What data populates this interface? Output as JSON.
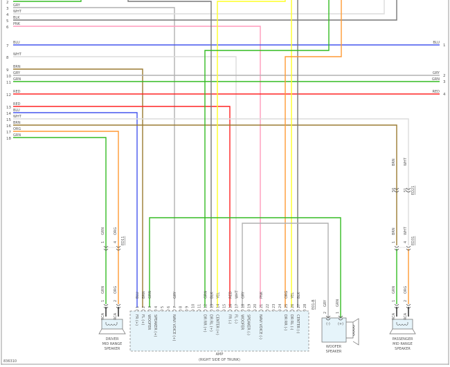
{
  "diagram_id": "836310",
  "wire_colors": {
    "GRN": "#33bb22",
    "GRY": "#b0b0b0",
    "WHT": "#dcdcdc",
    "BLK": "#777777",
    "PNK": "#ff99bb",
    "BLU": "#4455ee",
    "BRN": "#9a7a30",
    "RED": "#ff2222",
    "ORG": "#ff9933",
    "YEL": "#ffff22"
  },
  "left_harness": [
    {
      "pin": "1",
      "color": ""
    },
    {
      "pin": "2",
      "color": "GRN"
    },
    {
      "pin": "3",
      "color": "GRY"
    },
    {
      "pin": "4",
      "color": "WHT"
    },
    {
      "pin": "5",
      "color": "BLK"
    },
    {
      "pin": "6",
      "color": "PNK"
    },
    {
      "pin": "7",
      "color": "BLU"
    },
    {
      "pin": "8",
      "color": "WHT"
    },
    {
      "pin": "9",
      "color": "BRN"
    },
    {
      "pin": "10",
      "color": "GRY"
    },
    {
      "pin": "11",
      "color": "GRN"
    },
    {
      "pin": "12",
      "color": "RED"
    },
    {
      "pin": "13",
      "color": "RED"
    },
    {
      "pin": "14",
      "color": "BLU"
    },
    {
      "pin": "15",
      "color": "WHT"
    },
    {
      "pin": "16",
      "color": "BRN"
    },
    {
      "pin": "17",
      "color": "ORG"
    },
    {
      "pin": "18",
      "color": "GRN"
    }
  ],
  "right_harness": [
    {
      "pin": "1",
      "color": "BLU"
    },
    {
      "pin": "2",
      "color": "GRY"
    },
    {
      "pin": "3",
      "color": "GRN"
    },
    {
      "pin": "4",
      "color": "RED"
    }
  ],
  "amp": {
    "title": "AMP",
    "location": "(RIGHT SIDE OF TRUNK)",
    "connector": "E01-B",
    "pins": [
      {
        "pin": "1",
        "color": "BLU"
      },
      {
        "pin": "2",
        "color": "BRN"
      },
      {
        "pin": "3",
        "color": "GRN"
      },
      {
        "pin": "4",
        "color": ""
      },
      {
        "pin": "5",
        "color": ""
      },
      {
        "pin": "6",
        "color": ""
      },
      {
        "pin": "7",
        "color": "GRY"
      },
      {
        "pin": "8",
        "color": ""
      },
      {
        "pin": "9",
        "color": ""
      },
      {
        "pin": "10",
        "color": ""
      },
      {
        "pin": "11",
        "color": ""
      },
      {
        "pin": "12",
        "color": "GRN"
      },
      {
        "pin": "13",
        "color": "BLK"
      },
      {
        "pin": "14",
        "color": "YEL"
      },
      {
        "pin": "15",
        "color": ""
      },
      {
        "pin": "16",
        "color": "RED"
      },
      {
        "pin": "17",
        "color": "WHT"
      },
      {
        "pin": "18",
        "color": "GRY"
      },
      {
        "pin": "19",
        "color": ""
      },
      {
        "pin": "20",
        "color": ""
      },
      {
        "pin": "21",
        "color": "PNK"
      },
      {
        "pin": "22",
        "color": ""
      },
      {
        "pin": "23",
        "color": ""
      },
      {
        "pin": "24",
        "color": ""
      },
      {
        "pin": "25",
        "color": "ORG"
      },
      {
        "pin": "26",
        "color": "YEL"
      },
      {
        "pin": "27",
        "color": "BLK"
      },
      {
        "pin": "28",
        "color": ""
      }
    ],
    "functions": [
      {
        "pin": "1",
        "label": "FR (+)"
      },
      {
        "pin": "2",
        "label": "FL (+)"
      },
      {
        "pin": "3",
        "label": "WOOFER"
      },
      {
        "pin": "4",
        "label": "SPEAKER (+)"
      },
      {
        "pin": "7",
        "label": "NAVI VOICE (+)"
      },
      {
        "pin": "12",
        "label": "DR RR (+)"
      },
      {
        "pin": "13",
        "label": "DR RL (+)"
      },
      {
        "pin": "14",
        "label": "CENTER (+)"
      },
      {
        "pin": "16",
        "label": "FR (-)"
      },
      {
        "pin": "17",
        "label": "FL (-)"
      },
      {
        "pin": "18",
        "label": "WOOFER"
      },
      {
        "pin": "19",
        "label": "SPEAKER (-)"
      },
      {
        "pin": "21",
        "label": "NAVI VOICE (-)"
      },
      {
        "pin": "25",
        "label": "DR RR (-)"
      },
      {
        "pin": "26",
        "label": "DR RL (-)"
      },
      {
        "pin": "27",
        "label": "CENTER (-)"
      }
    ]
  },
  "driver_speaker": {
    "name_lines": [
      "DRIVER",
      "MID RANGE",
      "SPEAKER"
    ],
    "inline_connector": "ED11",
    "inline_pins": [
      {
        "pin": "1",
        "color": "GRN"
      },
      {
        "pin": "4",
        "color": "ORG"
      }
    ],
    "speaker_pins": [
      {
        "pin": "1",
        "color": "GRN",
        "type": "RCA"
      },
      {
        "pin": "2",
        "color": "ORG",
        "type": "RCA"
      }
    ]
  },
  "passenger_speaker": {
    "name_lines": [
      "PASSENGER",
      "MID RANGE",
      "SPEAKER"
    ],
    "upper_connector": "ED21",
    "upper_pins": [
      {
        "pin": "50",
        "color": "BRN"
      },
      {
        "pin": "51",
        "color": "WHT"
      }
    ],
    "inline_connector": "ED31",
    "inline_pins": [
      {
        "pin": "1",
        "color": "BRN"
      },
      {
        "pin": "4",
        "color": "WHT"
      }
    ],
    "speaker_pins": [
      {
        "pin": "1",
        "color": "GRN",
        "type": "RCA"
      },
      {
        "pin": "2",
        "color": "ORG",
        "type": "RCA"
      }
    ]
  },
  "woofer_speaker": {
    "name_lines": [
      "WOOFER",
      "SPEAKER"
    ],
    "pins": [
      {
        "pin": "2",
        "color": "GRY",
        "polarity": "(-)"
      },
      {
        "pin": "1",
        "color": "GRN",
        "polarity": "(+)"
      }
    ]
  }
}
